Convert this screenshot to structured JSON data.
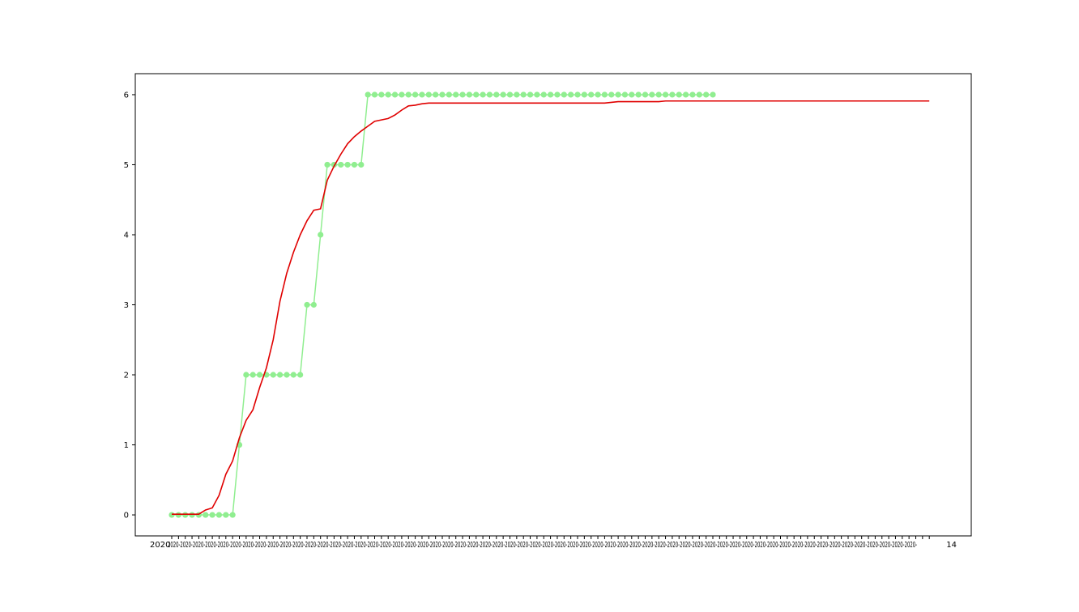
{
  "chart_data": {
    "type": "line",
    "title": "",
    "xlabel": "",
    "ylabel": "",
    "ylim": [
      -0.3,
      6.3
    ],
    "yticks": [
      0,
      1,
      2,
      3,
      4,
      5,
      6
    ],
    "xtick_labels": [
      "2020",
      "2020-",
      "14"
    ],
    "grid": false,
    "colors": {
      "observed": "#90ee90",
      "fitted": "#e00000"
    },
    "series": [
      {
        "style": "line+markers",
        "color": "#90ee90",
        "values": [
          0,
          0,
          0,
          0,
          0,
          0,
          0,
          0,
          0,
          0,
          1,
          2,
          2,
          2,
          2,
          2,
          2,
          2,
          2,
          2,
          3,
          3,
          4,
          5,
          5,
          5,
          5,
          5,
          5,
          6,
          6,
          6,
          6,
          6,
          6,
          6,
          6,
          6,
          6,
          6,
          6,
          6,
          6,
          6,
          6,
          6,
          6,
          6,
          6,
          6,
          6,
          6,
          6,
          6,
          6,
          6,
          6,
          6,
          6,
          6,
          6,
          6,
          6,
          6,
          6,
          6,
          6,
          6,
          6,
          6,
          6,
          6,
          6,
          6,
          6,
          6,
          6,
          6,
          6,
          6,
          6
        ]
      },
      {
        "style": "line",
        "color": "#e00000",
        "values": [
          0.01,
          0.01,
          0.01,
          0.01,
          0.01,
          0.07,
          0.1,
          0.28,
          0.58,
          0.77,
          1.1,
          1.35,
          1.5,
          1.82,
          2.1,
          2.5,
          3.05,
          3.45,
          3.75,
          4.0,
          4.2,
          4.35,
          4.37,
          4.78,
          4.98,
          5.15,
          5.3,
          5.4,
          5.48,
          5.55,
          5.62,
          5.64,
          5.66,
          5.71,
          5.78,
          5.84,
          5.85,
          5.87,
          5.88,
          5.88,
          5.88,
          5.88,
          5.88,
          5.88,
          5.88,
          5.88,
          5.88,
          5.88,
          5.88,
          5.88,
          5.88,
          5.88,
          5.88,
          5.88,
          5.88,
          5.88,
          5.88,
          5.88,
          5.88,
          5.88,
          5.88,
          5.88,
          5.88,
          5.88,
          5.88,
          5.89,
          5.9,
          5.9,
          5.9,
          5.9,
          5.9,
          5.9,
          5.9,
          5.91,
          5.91,
          5.91,
          5.91,
          5.91,
          5.91,
          5.91,
          5.91,
          5.91,
          5.91,
          5.91,
          5.91,
          5.91,
          5.91,
          5.91,
          5.91,
          5.91,
          5.91,
          5.91,
          5.91,
          5.91,
          5.91,
          5.91,
          5.91,
          5.91,
          5.91,
          5.91,
          5.91,
          5.91,
          5.91,
          5.91,
          5.91,
          5.91,
          5.91,
          5.91,
          5.91,
          5.91,
          5.91,
          5.91,
          5.91
        ]
      }
    ]
  }
}
